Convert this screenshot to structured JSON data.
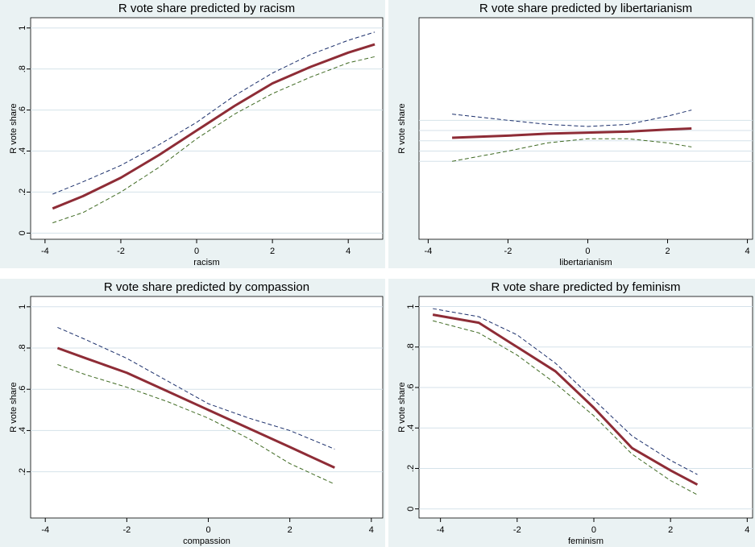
{
  "chart_data": [
    {
      "type": "line",
      "title": "R vote share predicted by racism",
      "xlabel": "racism",
      "ylabel": "R vote share",
      "x": [
        -3.8,
        -3,
        -2,
        -1,
        0,
        1,
        2,
        3,
        4,
        4.7
      ],
      "series": [
        {
          "color": "#1b2f6b",
          "dash": true,
          "width": 1,
          "values": [
            0.19,
            0.25,
            0.33,
            0.43,
            0.54,
            0.67,
            0.78,
            0.87,
            0.94,
            0.98
          ]
        },
        {
          "color": "#3f6a22",
          "dash": true,
          "width": 1,
          "values": [
            0.05,
            0.1,
            0.2,
            0.32,
            0.46,
            0.58,
            0.68,
            0.76,
            0.83,
            0.86
          ]
        },
        {
          "color": "#8e2c36",
          "dash": false,
          "width": 3,
          "values": [
            0.12,
            0.18,
            0.27,
            0.38,
            0.5,
            0.62,
            0.73,
            0.81,
            0.88,
            0.92
          ]
        }
      ],
      "xlim": [
        -4.38,
        4.91
      ],
      "ylim": [
        -0.03,
        1.05
      ],
      "xticks": [
        -4,
        -2,
        0,
        2,
        4
      ],
      "yticks": [
        0,
        {
          "value": 0.2,
          "label": ".2"
        },
        {
          "value": 0.4,
          "label": ".4"
        },
        {
          "value": 0.6,
          "label": ".6"
        },
        {
          "value": 0.8,
          "label": ".8"
        },
        1
      ],
      "grid": true
    },
    {
      "type": "line",
      "title": "R vote share predicted by libertarianism",
      "xlabel": "libertarianism",
      "ylabel": "R vote share",
      "x": [
        -3.4,
        -2,
        -1,
        0,
        1,
        2,
        2.6
      ],
      "series": [
        {
          "color": "#1b2f6b",
          "dash": true,
          "width": 1,
          "values": [
            0.58,
            0.55,
            0.53,
            0.52,
            0.53,
            0.57,
            0.6
          ]
        },
        {
          "color": "#3f6a22",
          "dash": true,
          "width": 1,
          "values": [
            0.35,
            0.4,
            0.44,
            0.46,
            0.46,
            0.44,
            0.42
          ]
        },
        {
          "color": "#8e2c36",
          "dash": false,
          "width": 3,
          "values": [
            0.465,
            0.475,
            0.485,
            0.49,
            0.495,
            0.505,
            0.51
          ]
        }
      ],
      "xlim": [
        -4.23,
        4.13
      ],
      "ylim": [
        -0.03,
        1.05
      ],
      "xticks": [
        -4,
        -2,
        0,
        2,
        4
      ],
      "ygrid": [
        0.35,
        0.4,
        0.45,
        0.5,
        0.55
      ],
      "grid": true
    },
    {
      "type": "line",
      "title": "R vote share predicted by compassion",
      "xlabel": "compassion",
      "ylabel": "R vote share",
      "x": [
        -3.7,
        -3,
        -2,
        -1,
        0,
        1,
        2,
        3.1
      ],
      "series": [
        {
          "color": "#1b2f6b",
          "dash": true,
          "width": 1,
          "values": [
            0.9,
            0.84,
            0.75,
            0.64,
            0.53,
            0.46,
            0.4,
            0.31
          ]
        },
        {
          "color": "#3f6a22",
          "dash": true,
          "width": 1,
          "values": [
            0.72,
            0.67,
            0.61,
            0.54,
            0.46,
            0.36,
            0.24,
            0.14
          ]
        },
        {
          "color": "#8e2c36",
          "dash": false,
          "width": 3,
          "values": [
            0.8,
            0.75,
            0.68,
            0.59,
            0.5,
            0.41,
            0.32,
            0.22
          ]
        }
      ],
      "xlim": [
        -4.36,
        4.28
      ],
      "ylim": [
        -0.024,
        1.05
      ],
      "xticks": [
        -4,
        -2,
        0,
        2,
        4
      ],
      "yticks": [
        {
          "value": 0.2,
          "label": ".2"
        },
        {
          "value": 0.4,
          "label": ".4"
        },
        {
          "value": 0.6,
          "label": ".6"
        },
        {
          "value": 0.8,
          "label": ".8"
        },
        1
      ],
      "grid": true
    },
    {
      "type": "line",
      "title": "R vote share predicted by feminism",
      "xlabel": "feminism",
      "ylabel": "R vote share",
      "x": [
        -4.2,
        -3,
        -2,
        -1,
        0,
        1,
        2,
        2.7
      ],
      "series": [
        {
          "color": "#1b2f6b",
          "dash": true,
          "width": 1,
          "values": [
            0.99,
            0.95,
            0.86,
            0.72,
            0.54,
            0.36,
            0.24,
            0.17
          ]
        },
        {
          "color": "#3f6a22",
          "dash": true,
          "width": 1,
          "values": [
            0.93,
            0.87,
            0.76,
            0.62,
            0.46,
            0.27,
            0.14,
            0.07
          ]
        },
        {
          "color": "#8e2c36",
          "dash": false,
          "width": 3,
          "values": [
            0.96,
            0.92,
            0.8,
            0.68,
            0.5,
            0.3,
            0.19,
            0.12
          ]
        }
      ],
      "xlim": [
        -4.56,
        4.14
      ],
      "ylim": [
        -0.045,
        1.05
      ],
      "xticks": [
        -4,
        -2,
        0,
        2,
        4
      ],
      "yticks": [
        0,
        {
          "value": 0.2,
          "label": ".2"
        },
        {
          "value": 0.4,
          "label": ".4"
        },
        {
          "value": 0.6,
          "label": ".6"
        },
        {
          "value": 0.8,
          "label": ".8"
        },
        1
      ],
      "grid": true
    }
  ]
}
